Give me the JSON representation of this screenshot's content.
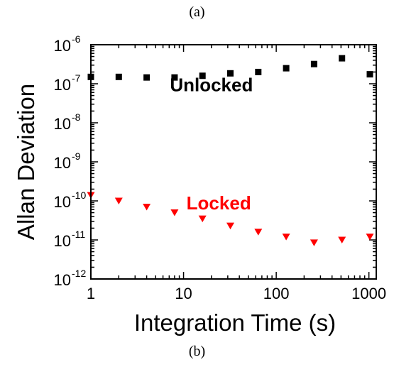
{
  "captions": {
    "top": "(a)",
    "bottom": "(b)"
  },
  "chart_data": {
    "type": "scatter",
    "title": "",
    "xlabel": "Integration Time (s)",
    "ylabel": "Allan Deviation",
    "xscale": "log",
    "yscale": "log",
    "xlim": [
      1,
      1200
    ],
    "ylim": [
      1e-12,
      1e-06
    ],
    "grid": false,
    "x_ticks": [
      {
        "value": 1,
        "label": "1"
      },
      {
        "value": 10,
        "label": "10"
      },
      {
        "value": 100,
        "label": "100"
      },
      {
        "value": 1000,
        "label": "1000"
      }
    ],
    "y_ticks": [
      {
        "value": 1e-12,
        "base": "10",
        "exp": "-12"
      },
      {
        "value": 1e-11,
        "base": "10",
        "exp": "-11"
      },
      {
        "value": 1e-10,
        "base": "10",
        "exp": "-10"
      },
      {
        "value": 1e-09,
        "base": "10",
        "exp": "-9"
      },
      {
        "value": 1e-08,
        "base": "10",
        "exp": "-8"
      },
      {
        "value": 1e-07,
        "base": "10",
        "exp": "-7"
      },
      {
        "value": 1e-06,
        "base": "10",
        "exp": "-6"
      }
    ],
    "series": [
      {
        "name": "Unlocked",
        "color": "#000000",
        "marker": "square",
        "x": [
          1,
          2,
          4,
          8,
          16,
          32,
          64,
          128,
          256,
          512,
          1024
        ],
        "y": [
          1.5e-07,
          1.5e-07,
          1.45e-07,
          1.45e-07,
          1.6e-07,
          1.85e-07,
          2e-07,
          2.5e-07,
          3.2e-07,
          4.5e-07,
          1.75e-07
        ]
      },
      {
        "name": "Locked",
        "color": "#ff0000",
        "marker": "triangle-down",
        "x": [
          1,
          2,
          4,
          8,
          16,
          32,
          64,
          128,
          256,
          512,
          1024
        ],
        "y": [
          1.4e-10,
          1e-10,
          7e-11,
          5e-11,
          3.5e-11,
          2.3e-11,
          1.6e-11,
          1.2e-11,
          8.5e-12,
          1e-11,
          1.2e-11
        ]
      }
    ],
    "annotations": [
      {
        "text": "Unlocked",
        "color": "#000000",
        "x": 20,
        "y": 6.5e-08
      },
      {
        "text": "Locked",
        "color": "#ff0000",
        "x": 24,
        "y": 6e-11
      }
    ]
  }
}
